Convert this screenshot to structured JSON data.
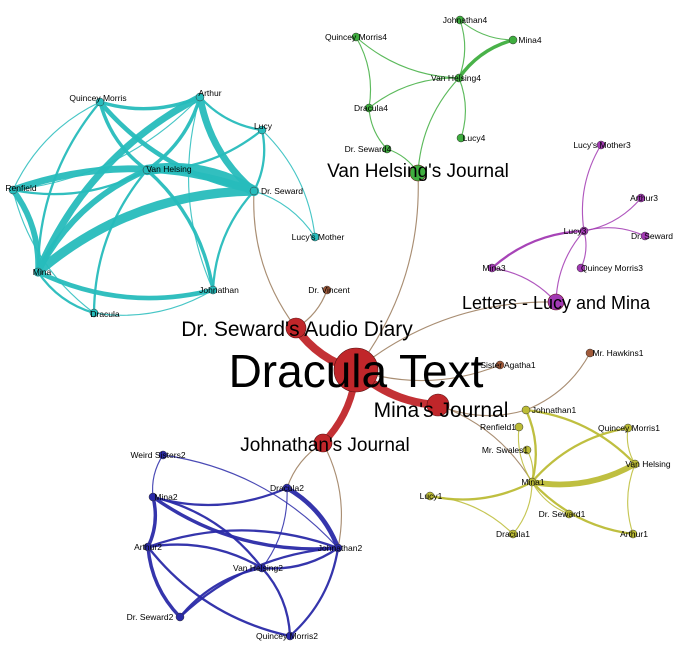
{
  "colors": {
    "dracula": "#c0262a",
    "cyan": "#27bcbc",
    "green": "#3fae3f",
    "purple": "#a23ab3",
    "olive": "#bcbc36",
    "blue": "#2a2aa8",
    "brown": "#a05a3a",
    "link": "#9a7a5a"
  },
  "hubs": [
    {
      "id": "dracula",
      "label": "Dracula Text",
      "group": "dracula"
    },
    {
      "id": "seward-diary",
      "label": "Dr. Seward's Audio Diary",
      "group": "dracula"
    },
    {
      "id": "mina-journal",
      "label": "Mina's Journal",
      "group": "dracula"
    },
    {
      "id": "johnathan-journal",
      "label": "Johnathan's Journal",
      "group": "dracula"
    },
    {
      "id": "vh-journal",
      "label": "Van Helsing's Journal",
      "group": "green"
    },
    {
      "id": "letters",
      "label": "Letters - Lucy and Mina",
      "group": "purple"
    }
  ],
  "nodes": [
    {
      "id": "quincey-morris",
      "label": "Quincey Morris",
      "group": "cyan"
    },
    {
      "id": "arthur",
      "label": "Arthur",
      "group": "cyan"
    },
    {
      "id": "lucy",
      "label": "Lucy",
      "group": "cyan"
    },
    {
      "id": "van-helsing",
      "label": "Van Helsing",
      "group": "cyan"
    },
    {
      "id": "renfield",
      "label": "Renfield",
      "group": "cyan"
    },
    {
      "id": "dr-seward",
      "label": "Dr. Seward",
      "group": "cyan"
    },
    {
      "id": "lucys-mother",
      "label": "Lucy's Mother",
      "group": "cyan"
    },
    {
      "id": "mina",
      "label": "Mina",
      "group": "cyan"
    },
    {
      "id": "johnathan",
      "label": "Johnathan",
      "group": "cyan"
    },
    {
      "id": "dracula-char",
      "label": "Dracula",
      "group": "cyan"
    },
    {
      "id": "dr-vincent",
      "label": "Dr. Vincent",
      "group": "brown"
    },
    {
      "id": "johnathan4",
      "label": "Johnathan4",
      "group": "green"
    },
    {
      "id": "quincey-morris4",
      "label": "Quincey Morris4",
      "group": "green"
    },
    {
      "id": "mina4",
      "label": "Mina4",
      "group": "green"
    },
    {
      "id": "van-helsing4",
      "label": "Van Helsing4",
      "group": "green"
    },
    {
      "id": "dracula4",
      "label": "Dracula4",
      "group": "green"
    },
    {
      "id": "lucy4",
      "label": "Lucy4",
      "group": "green"
    },
    {
      "id": "dr-seward4",
      "label": "Dr. Seward4",
      "group": "green"
    },
    {
      "id": "lucys-mother3",
      "label": "Lucy's Mother3",
      "group": "purple"
    },
    {
      "id": "arthur3",
      "label": "Arthur3",
      "group": "purple"
    },
    {
      "id": "lucy3",
      "label": "Lucy3",
      "group": "purple"
    },
    {
      "id": "dr-seward3",
      "label": "Dr. Seward",
      "group": "purple"
    },
    {
      "id": "mina3",
      "label": "Mina3",
      "group": "purple"
    },
    {
      "id": "quincey-morris3",
      "label": "Quincey Morris3",
      "group": "purple"
    },
    {
      "id": "sister-agatha1",
      "label": "Sister Agatha1",
      "group": "brown"
    },
    {
      "id": "mr-hawkins1",
      "label": "Mr. Hawkins1",
      "group": "brown"
    },
    {
      "id": "johnathan1",
      "label": "Johnathan1",
      "group": "olive"
    },
    {
      "id": "renfield1",
      "label": "Renfield1",
      "group": "olive"
    },
    {
      "id": "quincey-morris1",
      "label": "Quincey Morris1",
      "group": "olive"
    },
    {
      "id": "mr-swales1",
      "label": "Mr. Swales1",
      "group": "olive"
    },
    {
      "id": "van-helsing1",
      "label": "Van Helsing",
      "group": "olive"
    },
    {
      "id": "mina1",
      "label": "Mina1",
      "group": "olive"
    },
    {
      "id": "lucy1",
      "label": "Lucy1",
      "group": "olive"
    },
    {
      "id": "dr-seward1",
      "label": "Dr. Seward1",
      "group": "olive"
    },
    {
      "id": "dracula1",
      "label": "Dracula1",
      "group": "olive"
    },
    {
      "id": "arthur1",
      "label": "Arthur1",
      "group": "olive"
    },
    {
      "id": "weird-sisters2",
      "label": "Weird Sisters2",
      "group": "blue"
    },
    {
      "id": "mina2",
      "label": "Mina2",
      "group": "blue"
    },
    {
      "id": "dracula2",
      "label": "Dracula2",
      "group": "blue"
    },
    {
      "id": "arthur2",
      "label": "Arthur2",
      "group": "blue"
    },
    {
      "id": "johnathan2",
      "label": "Johnathan2",
      "group": "blue"
    },
    {
      "id": "van-helsing2",
      "label": "Van Helsing2",
      "group": "blue"
    },
    {
      "id": "dr-seward2",
      "label": "Dr. Seward2",
      "group": "blue"
    },
    {
      "id": "quincey-morris2",
      "label": "Quincey Morris2",
      "group": "blue"
    }
  ],
  "edges": [
    {
      "a": "dracula",
      "b": "seward-diary",
      "w": 7
    },
    {
      "a": "dracula",
      "b": "mina-journal",
      "w": 7
    },
    {
      "a": "dracula",
      "b": "johnathan-journal",
      "w": 6
    },
    {
      "a": "dracula",
      "b": "vh-journal",
      "w": 1
    },
    {
      "a": "dracula",
      "b": "letters",
      "w": 1
    },
    {
      "a": "dracula",
      "b": "sister-agatha1",
      "w": 1
    },
    {
      "a": "seward-diary",
      "b": "dr-seward",
      "w": 1
    },
    {
      "a": "seward-diary",
      "b": "dr-vincent",
      "w": 1
    },
    {
      "a": "vh-journal",
      "b": "van-helsing4",
      "w": 1
    },
    {
      "a": "vh-journal",
      "b": "dr-seward4",
      "w": 1
    },
    {
      "a": "letters",
      "b": "lucy3",
      "w": 1
    },
    {
      "a": "letters",
      "b": "mina3",
      "w": 1
    },
    {
      "a": "mina-journal",
      "b": "mina1",
      "w": 1
    },
    {
      "a": "mina-journal",
      "b": "johnathan1",
      "w": 1
    },
    {
      "a": "johnathan-journal",
      "b": "johnathan2",
      "w": 1
    },
    {
      "a": "johnathan-journal",
      "b": "dracula2",
      "w": 1
    },
    {
      "a": "van-helsing",
      "b": "dr-seward",
      "w": 9
    },
    {
      "a": "van-helsing",
      "b": "mina",
      "w": 5
    },
    {
      "a": "van-helsing",
      "b": "renfield",
      "w": 2
    },
    {
      "a": "van-helsing",
      "b": "arthur",
      "w": 3
    },
    {
      "a": "van-helsing",
      "b": "quincey-morris",
      "w": 3
    },
    {
      "a": "van-helsing",
      "b": "lucy",
      "w": 2
    },
    {
      "a": "van-helsing",
      "b": "johnathan",
      "w": 3
    },
    {
      "a": "van-helsing",
      "b": "dracula-char",
      "w": 2
    },
    {
      "a": "mina",
      "b": "dr-seward",
      "w": 8
    },
    {
      "a": "mina",
      "b": "renfield",
      "w": 5
    },
    {
      "a": "mina",
      "b": "arthur",
      "w": 6
    },
    {
      "a": "mina",
      "b": "johnathan",
      "w": 4
    },
    {
      "a": "mina",
      "b": "quincey-morris",
      "w": 2
    },
    {
      "a": "mina",
      "b": "dracula-char",
      "w": 2
    },
    {
      "a": "dr-seward",
      "b": "arthur",
      "w": 6
    },
    {
      "a": "dr-seward",
      "b": "renfield",
      "w": 6
    },
    {
      "a": "dr-seward",
      "b": "quincey-morris",
      "w": 4
    },
    {
      "a": "dr-seward",
      "b": "lucy",
      "w": 2
    },
    {
      "a": "dr-seward",
      "b": "lucys-mother",
      "w": 1
    },
    {
      "a": "dr-seward",
      "b": "johnathan",
      "w": 2
    },
    {
      "a": "arthur",
      "b": "quincey-morris",
      "w": 3
    },
    {
      "a": "arthur",
      "b": "lucy",
      "w": 2
    },
    {
      "a": "arthur",
      "b": "renfield",
      "w": 1
    },
    {
      "a": "quincey-morris",
      "b": "renfield",
      "w": 1
    },
    {
      "a": "johnathan",
      "b": "dracula-char",
      "w": 1
    },
    {
      "a": "renfield",
      "b": "dracula-char",
      "w": 1
    },
    {
      "a": "lucy",
      "b": "lucys-mother",
      "w": 1
    },
    {
      "a": "arthur",
      "b": "johnathan",
      "w": 1
    },
    {
      "a": "van-helsing4",
      "b": "mina4",
      "w": 3
    },
    {
      "a": "van-helsing4",
      "b": "johnathan4",
      "w": 1
    },
    {
      "a": "van-helsing4",
      "b": "quincey-morris4",
      "w": 1
    },
    {
      "a": "van-helsing4",
      "b": "dracula4",
      "w": 1
    },
    {
      "a": "van-helsing4",
      "b": "lucy4",
      "w": 1
    },
    {
      "a": "johnathan4",
      "b": "mina4",
      "w": 1
    },
    {
      "a": "quincey-morris4",
      "b": "dracula4",
      "w": 1
    },
    {
      "a": "dracula4",
      "b": "dr-seward4",
      "w": 1
    },
    {
      "a": "lucy3",
      "b": "lucys-mother3",
      "w": 1
    },
    {
      "a": "lucy3",
      "b": "arthur3",
      "w": 1
    },
    {
      "a": "lucy3",
      "b": "dr-seward3",
      "w": 1
    },
    {
      "a": "lucy3",
      "b": "mina3",
      "w": 2
    },
    {
      "a": "lucy3",
      "b": "quincey-morris3",
      "w": 1
    },
    {
      "a": "mina1",
      "b": "van-helsing1",
      "w": 5
    },
    {
      "a": "mina1",
      "b": "quincey-morris1",
      "w": 2
    },
    {
      "a": "mina1",
      "b": "johnathan1",
      "w": 2
    },
    {
      "a": "mina1",
      "b": "renfield1",
      "w": 1
    },
    {
      "a": "mina1",
      "b": "mr-swales1",
      "w": 1
    },
    {
      "a": "mina1",
      "b": "lucy1",
      "w": 2
    },
    {
      "a": "mina1",
      "b": "dr-seward1",
      "w": 1
    },
    {
      "a": "mina1",
      "b": "dracula1",
      "w": 1
    },
    {
      "a": "mina1",
      "b": "arthur1",
      "w": 2
    },
    {
      "a": "van-helsing1",
      "b": "quincey-morris1",
      "w": 1
    },
    {
      "a": "van-helsing1",
      "b": "arthur1",
      "w": 1
    },
    {
      "a": "johnathan1",
      "b": "van-helsing1",
      "w": 2
    },
    {
      "a": "johnathan1",
      "b": "mr-hawkins1",
      "w": 1
    },
    {
      "a": "lucy1",
      "b": "dracula1",
      "w": 1
    },
    {
      "a": "johnathan2",
      "b": "dracula2",
      "w": 4
    },
    {
      "a": "johnathan2",
      "b": "mina2",
      "w": 3
    },
    {
      "a": "johnathan2",
      "b": "arthur2",
      "w": 2
    },
    {
      "a": "johnathan2",
      "b": "van-helsing2",
      "w": 2
    },
    {
      "a": "johnathan2",
      "b": "dr-seward2",
      "w": 2
    },
    {
      "a": "johnathan2",
      "b": "quincey-morris2",
      "w": 2
    },
    {
      "a": "johnathan2",
      "b": "weird-sisters2",
      "w": 1
    },
    {
      "a": "mina2",
      "b": "arthur2",
      "w": 3
    },
    {
      "a": "mina2",
      "b": "dracula2",
      "w": 2
    },
    {
      "a": "mina2",
      "b": "van-helsing2",
      "w": 2
    },
    {
      "a": "arthur2",
      "b": "dr-seward2",
      "w": 3
    },
    {
      "a": "arthur2",
      "b": "van-helsing2",
      "w": 2
    },
    {
      "a": "arthur2",
      "b": "quincey-morris2",
      "w": 2
    },
    {
      "a": "dr-seward2",
      "b": "van-helsing2",
      "w": 2
    },
    {
      "a": "quincey-morris2",
      "b": "van-helsing2",
      "w": 2
    },
    {
      "a": "dracula2",
      "b": "van-helsing2",
      "w": 1
    },
    {
      "a": "weird-sisters2",
      "b": "mina2",
      "w": 1
    }
  ]
}
